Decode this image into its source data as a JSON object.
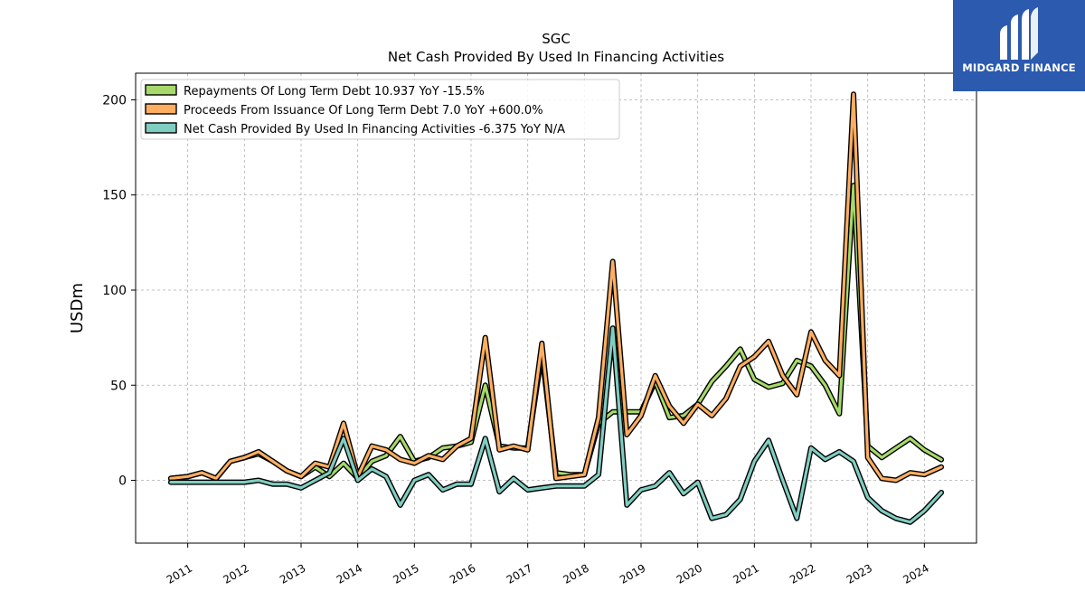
{
  "chart_data": {
    "type": "line",
    "title": "SGC",
    "subtitle": "Net Cash Provided By Used In Financing Activities",
    "ylabel": "USDm",
    "xlabel": "",
    "ylim": [
      -33,
      214
    ],
    "xlim": [
      2010.08,
      2024.92
    ],
    "yticks": [
      0,
      50,
      100,
      150,
      200
    ],
    "xticks": [
      "2011",
      "2012",
      "2013",
      "2014",
      "2015",
      "2016",
      "2017",
      "2018",
      "2019",
      "2020",
      "2021",
      "2022",
      "2023",
      "2024"
    ],
    "grid": true,
    "legend_position": "top-left",
    "x": [
      2010.7,
      2011.0,
      2011.25,
      2011.5,
      2011.75,
      2012.0,
      2012.25,
      2012.5,
      2012.75,
      2013.0,
      2013.25,
      2013.5,
      2013.75,
      2014.0,
      2014.25,
      2014.5,
      2014.75,
      2015.0,
      2015.25,
      2015.5,
      2015.75,
      2016.0,
      2016.25,
      2016.5,
      2016.75,
      2017.0,
      2017.25,
      2017.5,
      2017.75,
      2018.0,
      2018.25,
      2018.5,
      2018.75,
      2019.0,
      2019.25,
      2019.5,
      2019.75,
      2020.0,
      2020.25,
      2020.5,
      2020.75,
      2021.0,
      2021.25,
      2021.5,
      2021.75,
      2022.0,
      2022.25,
      2022.5,
      2022.75,
      2023.0,
      2023.25,
      2023.5,
      2023.75,
      2024.0,
      2024.3
    ],
    "series": [
      {
        "name": "Repayments Of Long Term Debt  10.937 YoY -15.5%",
        "color": "#a6d96a",
        "values": [
          1,
          2,
          4,
          1,
          10,
          12,
          14,
          10,
          5,
          2,
          7,
          2,
          9,
          1,
          10,
          13,
          23,
          10,
          12,
          17,
          18,
          20,
          50,
          18,
          17,
          17,
          67,
          4,
          3,
          3,
          30,
          36,
          36,
          36,
          52,
          33,
          34,
          40,
          52,
          60,
          69,
          53,
          49,
          51,
          63,
          60,
          50,
          35,
          155,
          18,
          12,
          17,
          22,
          16,
          10.9
        ]
      },
      {
        "name": "Proceeds From Issuance Of Long Term Debt  7.0 YoY +600.0%",
        "color": "#fdae61",
        "values": [
          1,
          2,
          4,
          1,
          10,
          12,
          15,
          10,
          5,
          2,
          9,
          7,
          30,
          2,
          18,
          16,
          11,
          9,
          13,
          11,
          18,
          22,
          75,
          16,
          18,
          16,
          72,
          1,
          2,
          3,
          33,
          115,
          24,
          34,
          55,
          39,
          30,
          40,
          34,
          43,
          60,
          65,
          73,
          55,
          45,
          78,
          63,
          55,
          203,
          12,
          1,
          0,
          4,
          3,
          7.0
        ]
      },
      {
        "name": "Net Cash Provided By Used In Financing Activities  -6.375 YoY N/A",
        "color": "#80cdc1",
        "values": [
          -1,
          -1,
          -1,
          -1,
          -1,
          -1,
          0,
          -2,
          -2,
          -4,
          0,
          4,
          22,
          0,
          6,
          2,
          -13,
          0,
          3,
          -5,
          -2,
          -2,
          22,
          -6,
          1,
          -5,
          -4,
          -3,
          -3,
          -3,
          3,
          80,
          -13,
          -5,
          -3,
          4,
          -7,
          -1,
          -20,
          -18,
          -10,
          10,
          21,
          0,
          -20,
          17,
          11,
          15,
          10,
          -9,
          -16,
          -20,
          -22,
          -16,
          -6.4
        ]
      }
    ]
  },
  "logo": {
    "text": "MIDGARD FINANCE",
    "background": "#2b5aae"
  }
}
